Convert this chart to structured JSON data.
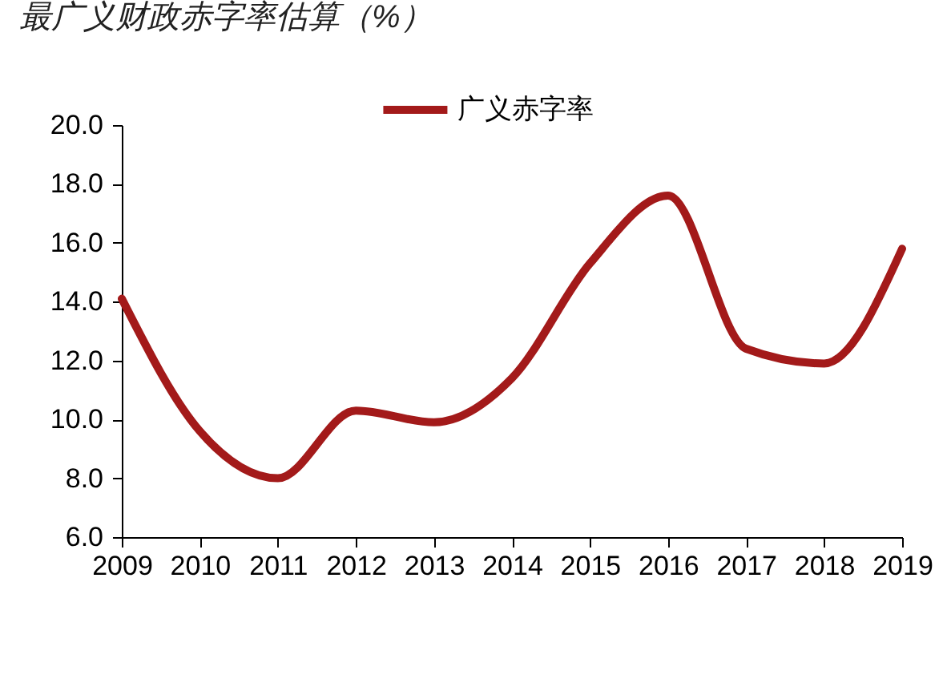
{
  "chart_data": {
    "type": "line",
    "title": "最广义财政赤字率估算（%）",
    "categories": [
      "2009",
      "2010",
      "2011",
      "2012",
      "2013",
      "2014",
      "2015",
      "2016",
      "2017",
      "2018",
      "2019"
    ],
    "series": [
      {
        "name": "广义赤字率",
        "color": "#a31a1a",
        "values": [
          14.1,
          9.6,
          8.0,
          10.3,
          9.9,
          11.4,
          15.3,
          17.6,
          12.4,
          11.9,
          15.8
        ]
      }
    ],
    "ylim": [
      6,
      20
    ],
    "yticks": [
      {
        "value": 6,
        "label": "6.0"
      },
      {
        "value": 8,
        "label": "8.0"
      },
      {
        "value": 10,
        "label": "10.0"
      },
      {
        "value": 12,
        "label": "12.0"
      },
      {
        "value": 14,
        "label": "14.0"
      },
      {
        "value": 16,
        "label": "16.0"
      },
      {
        "value": 18,
        "label": "18.0"
      },
      {
        "value": 20,
        "label": "20.0"
      }
    ],
    "grid": false,
    "legend": "top",
    "marker": "none",
    "line_style": "solid"
  }
}
